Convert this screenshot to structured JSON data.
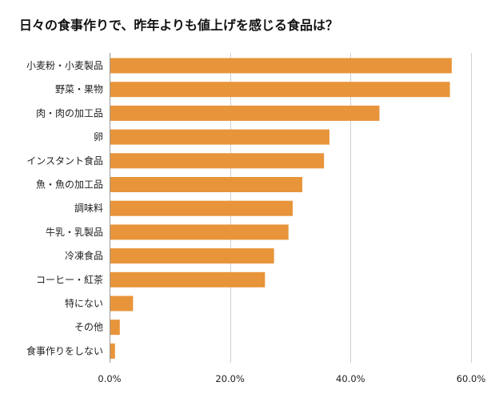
{
  "chart_data": {
    "type": "bar",
    "orientation": "horizontal",
    "title": "日々の食事作りで、昨年よりも値上げを感じる食品は？",
    "categories": [
      "小麦粉・小麦製品",
      "野菜・果物",
      "肉・肉の加工品",
      "卵",
      "インスタント食品",
      "魚・魚の加工品",
      "調味料",
      "牛乳・乳製品",
      "冷凍食品",
      "コーヒー・紅茶",
      "特にない",
      "その他",
      "食事作りをしない"
    ],
    "values": [
      56.8,
      56.5,
      44.8,
      36.5,
      35.6,
      32.0,
      30.4,
      29.7,
      27.3,
      25.8,
      3.9,
      1.7,
      0.9
    ],
    "xlim": [
      0,
      60
    ],
    "xticks": [
      0,
      20,
      40,
      60
    ],
    "xtick_labels": [
      "0.0%",
      "20.0%",
      "40.0%",
      "60.0%"
    ],
    "xlabel": "",
    "ylabel": "",
    "grid": true,
    "colors": {
      "bar": "#E8943A",
      "grid": "#D0D0D0",
      "axis": "#999999"
    }
  }
}
